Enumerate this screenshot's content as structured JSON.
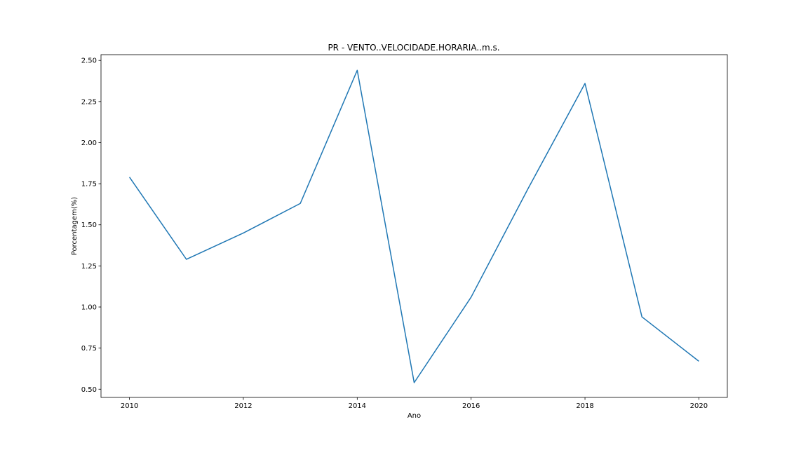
{
  "chart_data": {
    "type": "line",
    "title": "PR - VENTO..VELOCIDADE.HORARIA..m.s.",
    "xlabel": "Ano",
    "ylabel": "Porcentagem(%)",
    "x": [
      2010,
      2011,
      2012,
      2013,
      2014,
      2015,
      2016,
      2017,
      2018,
      2019,
      2020
    ],
    "series": [
      {
        "values": [
          1.79,
          1.29,
          1.45,
          1.63,
          2.44,
          0.54,
          1.06,
          1.72,
          2.36,
          0.94,
          0.67
        ],
        "color": "#1f77b4"
      }
    ],
    "xticks": [
      "2010",
      "2012",
      "2014",
      "2016",
      "2018",
      "2020"
    ],
    "yticks": [
      "0.50",
      "0.75",
      "1.00",
      "1.25",
      "1.50",
      "1.75",
      "2.00",
      "2.25",
      "2.50"
    ],
    "xlim": [
      2009.5,
      2020.5
    ],
    "ylim": [
      0.45,
      2.535
    ],
    "grid": false,
    "legend": "none"
  }
}
